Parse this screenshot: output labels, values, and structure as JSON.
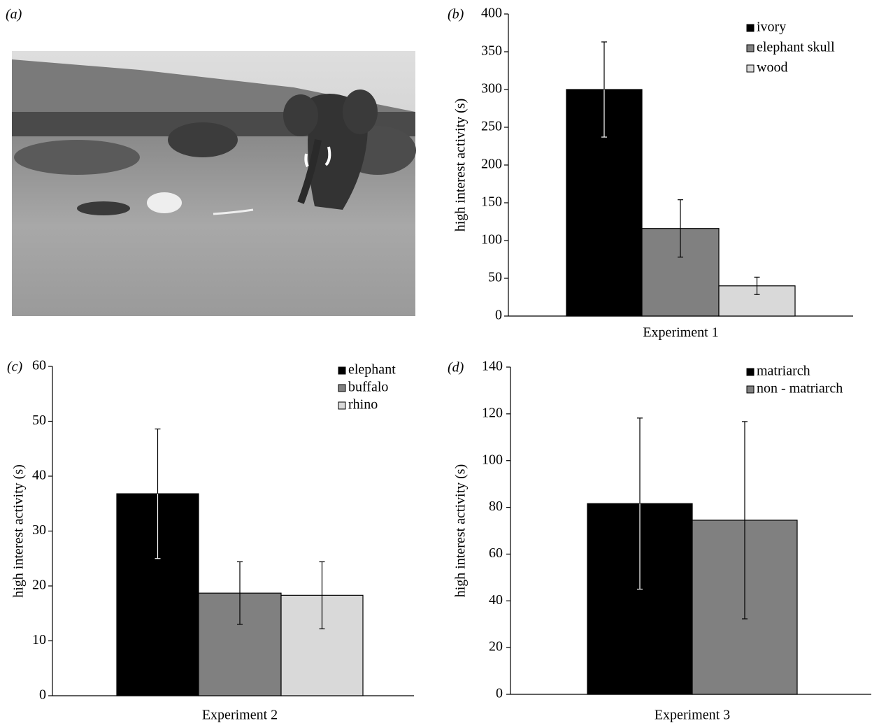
{
  "image_panel": {
    "label": "(a)"
  },
  "chart_data": [
    {
      "type": "bar",
      "label": "(b)",
      "categories": [
        "Experiment 1"
      ],
      "ylabel": "high interest activity (s)",
      "ylim": [
        0,
        400
      ],
      "yticks": [
        0,
        50,
        100,
        150,
        200,
        250,
        300,
        350,
        400
      ],
      "series": [
        {
          "name": "ivory",
          "color": "#000000",
          "values": [
            300
          ],
          "errors": [
            63
          ]
        },
        {
          "name": "elephant skull",
          "color": "#808080",
          "values": [
            116
          ],
          "errors": [
            38
          ]
        },
        {
          "name": "wood",
          "color": "#d9d9d9",
          "values": [
            40
          ],
          "errors": [
            11.5
          ]
        }
      ]
    },
    {
      "type": "bar",
      "label": "(c)",
      "categories": [
        "Experiment 2"
      ],
      "ylabel": "high interest activity (s)",
      "ylim": [
        0,
        60
      ],
      "yticks": [
        0,
        10,
        20,
        30,
        40,
        50,
        60
      ],
      "series": [
        {
          "name": "elephant",
          "color": "#000000",
          "values": [
            36.8
          ],
          "errors": [
            11.8
          ]
        },
        {
          "name": "buffalo",
          "color": "#808080",
          "values": [
            18.7
          ],
          "errors": [
            5.7
          ]
        },
        {
          "name": "rhino",
          "color": "#d9d9d9",
          "values": [
            18.3
          ],
          "errors": [
            6.1
          ]
        }
      ]
    },
    {
      "type": "bar",
      "label": "(d)",
      "categories": [
        "Experiment 3"
      ],
      "ylabel": "high interest activity (s)",
      "ylim": [
        0,
        140
      ],
      "yticks": [
        0,
        20,
        40,
        60,
        80,
        100,
        120,
        140
      ],
      "series": [
        {
          "name": "matriarch",
          "color": "#000000",
          "values": [
            81.6
          ],
          "errors": [
            36.6
          ]
        },
        {
          "name": "non - matriarch",
          "color": "#808080",
          "values": [
            74.5
          ],
          "errors": [
            42.2
          ]
        }
      ]
    }
  ]
}
